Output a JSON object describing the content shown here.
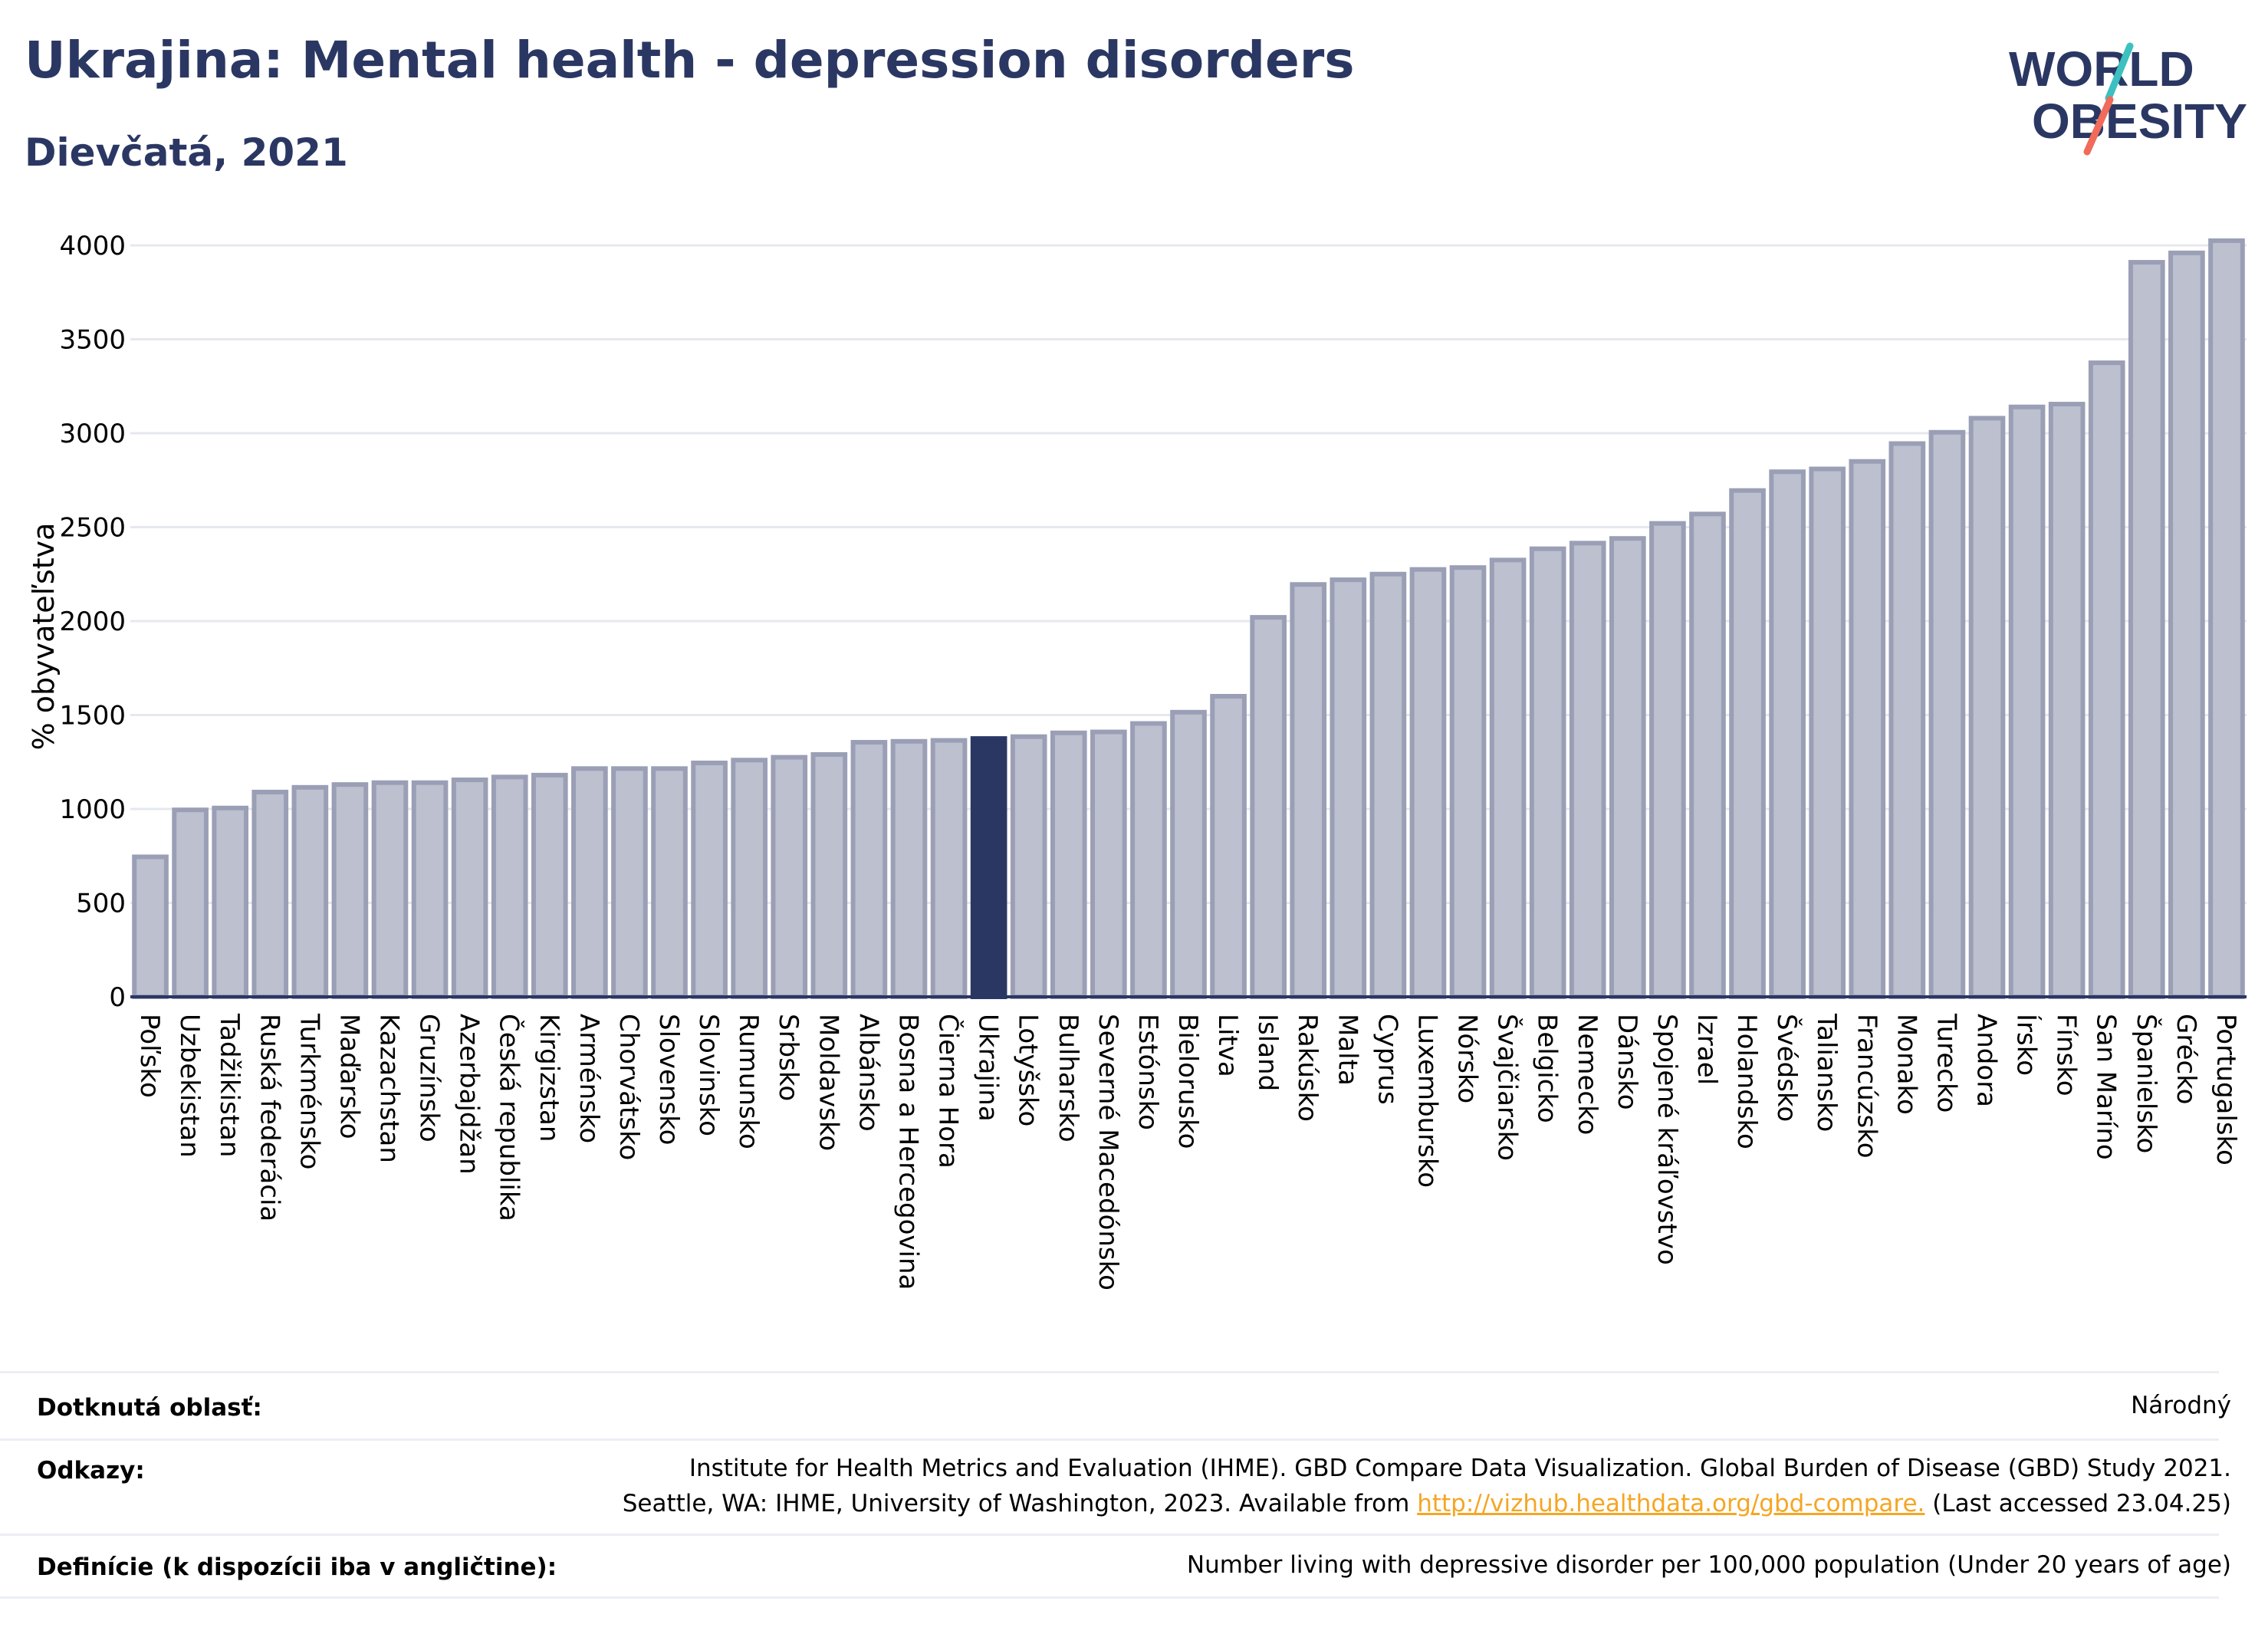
{
  "header": {
    "title": "Ukrajina: Mental health - depression disorders",
    "subtitle": "Dievčatá, 2021",
    "logo_line1": "WORLD",
    "logo_line2": "OBESITY"
  },
  "colors": {
    "bar": "#bcc0cf",
    "bar_stroke": "#9a9fb6",
    "highlight": "#2b3763",
    "axis": "#2b3763",
    "grid": "#e6e8ef",
    "logo_teal": "#3cc0c0",
    "logo_coral": "#f06b5a"
  },
  "chart_data": {
    "type": "bar",
    "ylabel": "% obyvateľstva",
    "ylim": [
      0,
      4000
    ],
    "yticks": [
      0,
      500,
      1000,
      1500,
      2000,
      2500,
      3000,
      3500,
      4000
    ],
    "grid": true,
    "highlight": "Ukrajina",
    "categories": [
      "Poľsko",
      "Uzbekistan",
      "Tadžikistan",
      "Ruská federácia",
      "Turkménsko",
      "Maďarsko",
      "Kazachstan",
      "Gruzínsko",
      "Azerbajdžan",
      "Česká republika",
      "Kirgizstan",
      "Arménsko",
      "Chorvátsko",
      "Slovensko",
      "Slovinsko",
      "Rumunsko",
      "Srbsko",
      "Moldavsko",
      "Albánsko",
      "Bosna a Hercegovina",
      "Čierna Hora",
      "Ukrajina",
      "Lotyšsko",
      "Bulharsko",
      "Severné Macedónsko",
      "Estónsko",
      "Bielorusko",
      "Litva",
      "Island",
      "Rakúsko",
      "Malta",
      "Cyprus",
      "Luxembursko",
      "Nórsko",
      "Švajčiarsko",
      "Belgicko",
      "Nemecko",
      "Dánsko",
      "Spojené kráľovstvo",
      "Izrael",
      "Holandsko",
      "Švédsko",
      "Taliansko",
      "Francúzsko",
      "Monako",
      "Turecko",
      "Andora",
      "Írsko",
      "Fínsko",
      "San Maríno",
      "Španielsko",
      "Grécko",
      "Portugalsko"
    ],
    "values": [
      745,
      995,
      1005,
      1090,
      1115,
      1130,
      1140,
      1140,
      1155,
      1170,
      1180,
      1215,
      1215,
      1215,
      1245,
      1260,
      1275,
      1290,
      1355,
      1360,
      1365,
      1375,
      1385,
      1405,
      1410,
      1455,
      1515,
      1600,
      2020,
      2195,
      2220,
      2250,
      2275,
      2285,
      2325,
      2385,
      2415,
      2440,
      2520,
      2570,
      2695,
      2795,
      2810,
      2850,
      2945,
      3005,
      3080,
      3140,
      3155,
      3375,
      3910,
      3960,
      4025
    ]
  },
  "meta": {
    "area_label": "Dotknutá oblasť:",
    "area_value": "Národný",
    "refs_label": "Odkazy:",
    "refs_line1": "Institute for Health Metrics and Evaluation (IHME). GBD Compare Data Visualization. Global Burden of Disease (GBD) Study 2021.",
    "refs_line2_pre": "Seattle, WA: IHME, University of Washington, 2023. Available from",
    "refs_link": "http://vizhub.healthdata.org/gbd-compare.",
    "refs_line2_post": "(Last accessed 23.04.25)",
    "def_label": "Definície (k dispozícii iba v angličtine):",
    "def_value": "Number living with depressive disorder per 100,000 population (Under 20 years of age)"
  }
}
